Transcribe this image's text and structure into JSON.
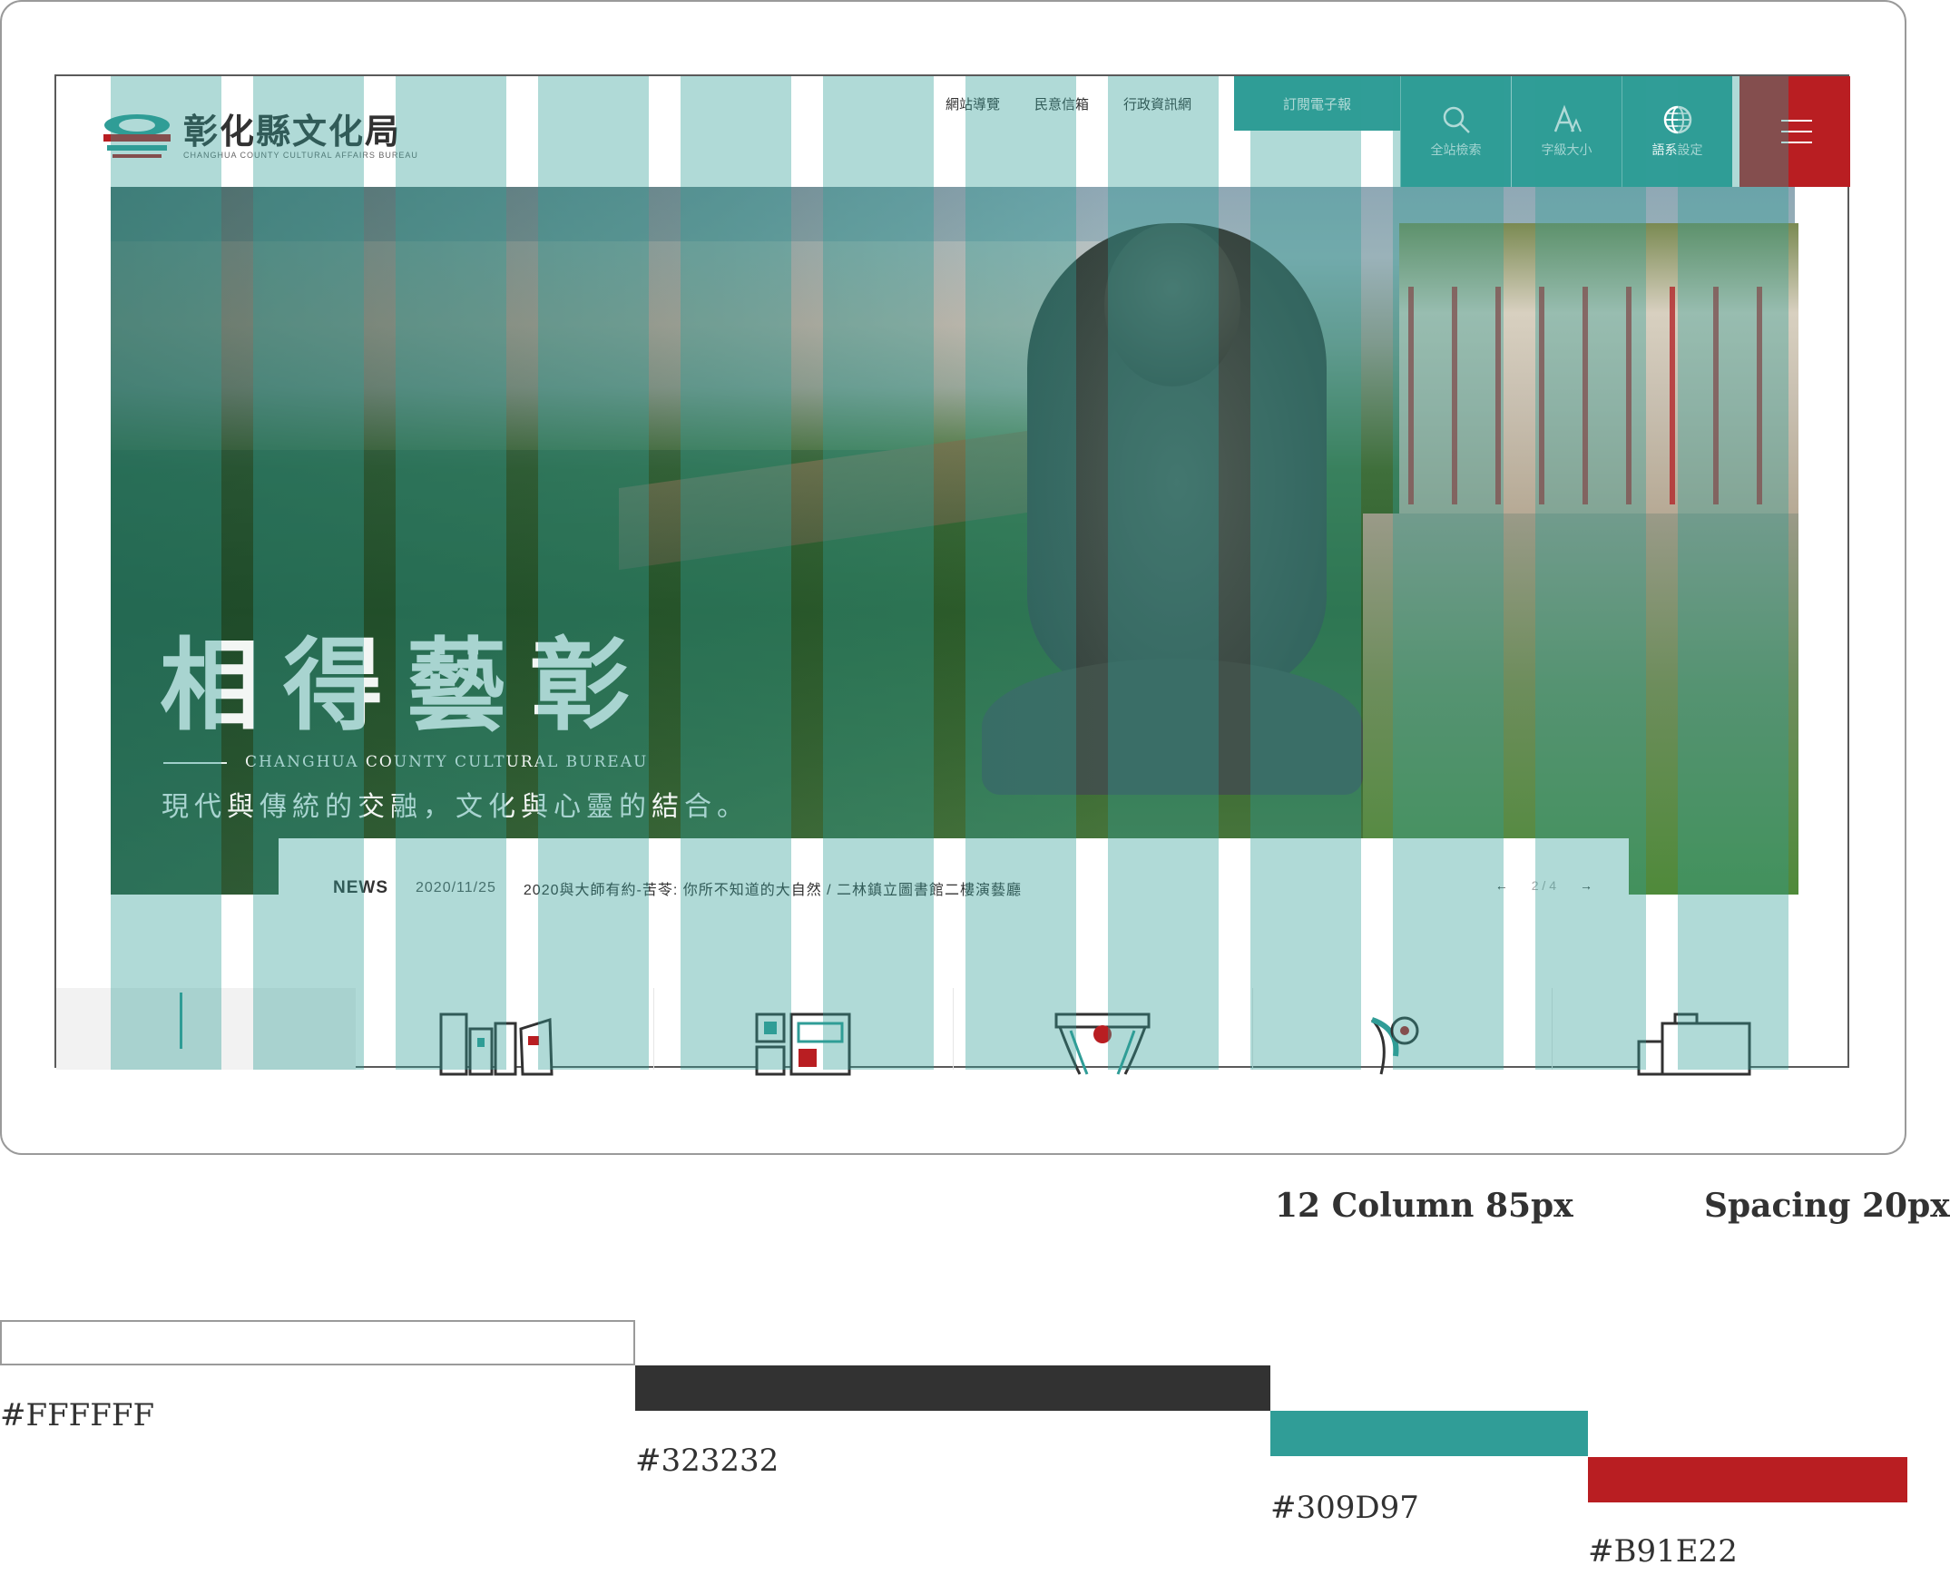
{
  "header": {
    "logo_title": "彰化縣文化局",
    "logo_subtitle": "CHANGHUA COUNTY CULTURAL AFFAIRS BUREAU",
    "top_links": [
      "網站導覽",
      "民意信箱",
      "行政資訊網"
    ],
    "subscribe_label": "訂閱電子報",
    "tools": {
      "search_label": "全站檢索",
      "font_label": "字級大小",
      "lang_label": "語系設定"
    }
  },
  "hero": {
    "title": "相得藝彰",
    "subtitle_en": "CHANGHUA COUNTY CULTURAL BUREAU",
    "subtitle": "現代與傳統的交融，文化與心靈的結合。"
  },
  "news": {
    "label": "NEWS",
    "date": "2020/11/25",
    "text": "2020與大師有約-苦苓: 你所不知道的大自然 / 二林鎮立圖書館二樓演藝廳",
    "prev": "←",
    "page": "2 / 4",
    "next": "→"
  },
  "categories": [
    "library-icon",
    "qr-app-icon",
    "theater-icon",
    "art-icon",
    "gallery-icon"
  ],
  "annotations": {
    "columns": "12 Column 85px",
    "spacing": "Spacing 20px"
  },
  "palette": [
    {
      "hex": "#FFFFFF",
      "label": "#FFFFFF"
    },
    {
      "hex": "#323232",
      "label": "#323232"
    },
    {
      "hex": "#309D97",
      "label": "#309D97"
    },
    {
      "hex": "#B91E22",
      "label": "#B91E22"
    }
  ]
}
